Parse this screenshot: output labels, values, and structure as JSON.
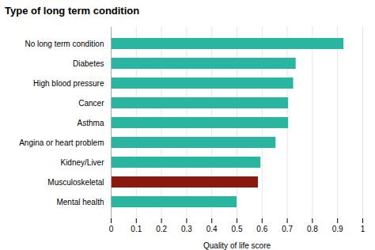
{
  "chart_data": {
    "type": "bar",
    "orientation": "horizontal",
    "title": "Type of long term condition",
    "xlabel": "Quality of life score",
    "categories": [
      "Mental health",
      "Musculoskeletal",
      "Kidney/Liver",
      "Angina or heart problem",
      "Asthma",
      "Cancer",
      "High blood pressure",
      "Diabetes",
      "No long term condition"
    ],
    "values": [
      0.5,
      0.585,
      0.595,
      0.655,
      0.705,
      0.705,
      0.725,
      0.735,
      0.925
    ],
    "colors": [
      "#2ab5a0",
      "#8b1a0e",
      "#2ab5a0",
      "#2ab5a0",
      "#2ab5a0",
      "#2ab5a0",
      "#2ab5a0",
      "#2ab5a0",
      "#2ab5a0"
    ],
    "xlim": [
      0,
      1.0
    ],
    "xticks": [
      0,
      0.1,
      0.2,
      0.3,
      0.4,
      0.5,
      0.6,
      0.7,
      0.8,
      0.9,
      1
    ],
    "grid": true
  }
}
